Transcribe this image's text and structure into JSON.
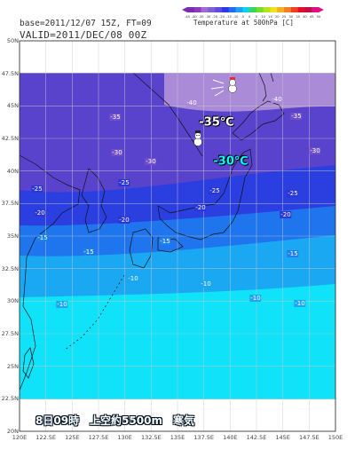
{
  "header": {
    "base_line": "base=2011/12/07 15Z, FT=09",
    "valid_line": "VALID=2011/DEC/08 00Z"
  },
  "legend": {
    "title": "Temperature at 500hPa  [C]",
    "ticks": [
      "-45",
      "-40",
      "-35",
      "-30",
      "-25",
      "-20",
      "-15",
      "-10",
      "-5",
      "0",
      "5",
      "10",
      "15",
      "20",
      "25",
      "30",
      "35",
      "40",
      "45",
      "50"
    ],
    "colors": [
      "#7a2bb0",
      "#8c3ac0",
      "#a06ad0",
      "#7c5fd4",
      "#5d4be0",
      "#3236e8",
      "#1f6ef0",
      "#1fa0f0",
      "#10d0f0",
      "#39d35a",
      "#7adc2a",
      "#b6e21a",
      "#f0e020",
      "#f0b020",
      "#f08020",
      "#f04020",
      "#e0102a",
      "#c01040",
      "#e01080"
    ]
  },
  "map": {
    "lat_labels": [
      "50N",
      "47.5N",
      "45N",
      "42.5N",
      "40N",
      "37.5N",
      "35N",
      "32.5N",
      "30N",
      "27.5N",
      "25N",
      "22.5N",
      "20N"
    ],
    "lon_labels": [
      "120E",
      "122.5E",
      "125E",
      "127.5E",
      "130E",
      "132.5E",
      "135E",
      "137.5E",
      "140E",
      "142.5E",
      "145E",
      "147.5E",
      "150E"
    ],
    "contour_labels": [
      {
        "text": "-40",
        "style": "ctr-pale",
        "name": "contour-label-m40-a"
      },
      {
        "text": "-40",
        "style": "ctr-pale",
        "name": "contour-label-m40-b"
      },
      {
        "text": "-35",
        "style": "ctr-dark",
        "name": "contour-label-m35-a"
      },
      {
        "text": "-35",
        "style": "ctr-dark",
        "name": "contour-label-m35-b"
      },
      {
        "text": "-30",
        "style": "ctr-dark",
        "name": "contour-label-m30-a"
      },
      {
        "text": "-30",
        "style": "ctr-dark",
        "name": "contour-label-m30-b"
      },
      {
        "text": "-30",
        "style": "ctr-dark",
        "name": "contour-label-m30-c"
      },
      {
        "text": "-25",
        "style": "ctr-blue",
        "name": "contour-label-m25-a"
      },
      {
        "text": "-25",
        "style": "ctr-blue",
        "name": "contour-label-m25-b"
      },
      {
        "text": "-25",
        "style": "ctr-blue",
        "name": "contour-label-m25-c"
      },
      {
        "text": "-25",
        "style": "ctr-blue",
        "name": "contour-label-m25-d"
      },
      {
        "text": "-20",
        "style": "ctr-blue",
        "name": "contour-label-m20-a"
      },
      {
        "text": "-20",
        "style": "ctr-blue",
        "name": "contour-label-m20-b"
      },
      {
        "text": "-20",
        "style": "ctr-blue",
        "name": "contour-label-m20-c"
      },
      {
        "text": "-20",
        "style": "ctr-blue",
        "name": "contour-label-m20-d"
      },
      {
        "text": "-15",
        "style": "ctr-mid",
        "name": "contour-label-m15-a"
      },
      {
        "text": "-15",
        "style": "ctr-mid",
        "name": "contour-label-m15-b"
      },
      {
        "text": "-15",
        "style": "ctr-mid",
        "name": "contour-label-m15-c"
      },
      {
        "text": "-15",
        "style": "ctr-mid",
        "name": "contour-label-m15-d"
      },
      {
        "text": "-10",
        "style": "ctr-lite",
        "name": "contour-label-m10-a"
      },
      {
        "text": "-10",
        "style": "ctr-lite",
        "name": "contour-label-m10-b"
      },
      {
        "text": "-10",
        "style": "ctr-lite",
        "name": "contour-label-m10-c"
      },
      {
        "text": "-10",
        "style": "ctr-lite",
        "name": "contour-label-m10-d"
      },
      {
        "text": "-10",
        "style": "ctr-lite",
        "name": "contour-label-m10-e"
      }
    ],
    "annotation_minus35": "-35℃",
    "annotation_minus30": "-30℃",
    "caption": "8日09時　上空約5500m　寒気"
  },
  "icons": [
    "snowman-icon",
    "snowman-wind-icon"
  ]
}
